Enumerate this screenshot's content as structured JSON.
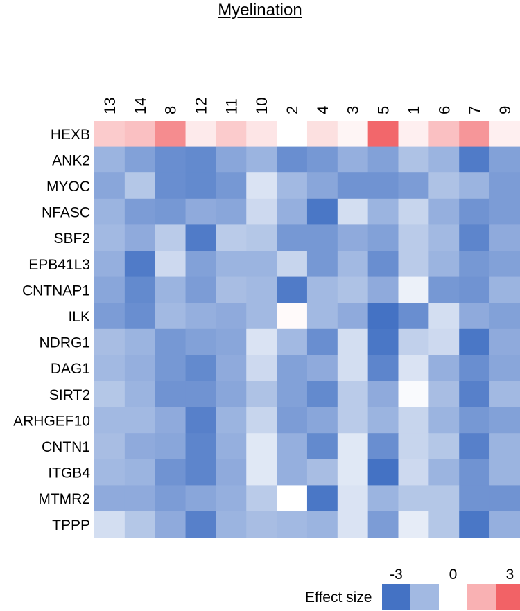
{
  "chart_data": {
    "type": "heatmap",
    "title": "Myelination",
    "columns": [
      "13",
      "14",
      "8",
      "12",
      "11",
      "10",
      "2",
      "4",
      "3",
      "5",
      "1",
      "6",
      "7",
      "9"
    ],
    "rows": [
      "HEXB",
      "ANK2",
      "MYOC",
      "NFASC",
      "SBF2",
      "EPB41L3",
      "CNTNAP1",
      "ILK",
      "NDRG1",
      "DAG1",
      "SIRT2",
      "ARHGEF10",
      "CNTN1",
      "ITGB4",
      "MTMR2",
      "TPPP"
    ],
    "values": [
      [
        1.0,
        1.2,
        2.2,
        0.4,
        1.0,
        0.5,
        0.0,
        0.6,
        0.2,
        2.9,
        0.3,
        1.2,
        2.0,
        0.3
      ],
      [
        -1.6,
        -2.0,
        -2.4,
        -2.5,
        -1.9,
        -1.6,
        -2.4,
        -2.2,
        -1.7,
        -2.0,
        -1.3,
        -1.6,
        -2.8,
        -2.0
      ],
      [
        -1.9,
        -1.2,
        -2.4,
        -2.5,
        -2.2,
        -0.6,
        -1.5,
        -1.9,
        -2.3,
        -2.3,
        -2.1,
        -1.3,
        -1.6,
        -2.1
      ],
      [
        -1.6,
        -2.1,
        -2.2,
        -1.8,
        -1.9,
        -0.8,
        -1.7,
        -2.9,
        -0.7,
        -1.6,
        -0.9,
        -1.7,
        -2.3,
        -2.1
      ],
      [
        -1.5,
        -1.8,
        -1.1,
        -2.8,
        -1.1,
        -1.2,
        -2.2,
        -2.2,
        -1.8,
        -2.0,
        -1.1,
        -1.5,
        -2.6,
        -1.8
      ],
      [
        -1.7,
        -2.8,
        -0.8,
        -2.0,
        -1.6,
        -1.6,
        -0.9,
        -2.2,
        -1.5,
        -2.4,
        -1.1,
        -1.6,
        -2.2,
        -2.0
      ],
      [
        -1.9,
        -2.5,
        -1.6,
        -2.1,
        -1.4,
        -1.5,
        -2.8,
        -1.5,
        -1.3,
        -1.8,
        -0.3,
        -2.2,
        -2.3,
        -1.6
      ],
      [
        -2.1,
        -2.4,
        -1.5,
        -1.7,
        -1.8,
        -1.5,
        0.1,
        -1.5,
        -1.8,
        -3.0,
        -2.4,
        -0.7,
        -1.8,
        -2.0
      ],
      [
        -1.4,
        -1.6,
        -2.2,
        -2.0,
        -1.9,
        -0.6,
        -1.5,
        -2.4,
        -0.7,
        -2.9,
        -1.0,
        -0.8,
        -2.9,
        -1.8
      ],
      [
        -1.5,
        -1.7,
        -2.2,
        -2.5,
        -1.8,
        -0.8,
        -2.0,
        -1.8,
        -0.7,
        -2.6,
        -0.6,
        -1.7,
        -2.4,
        -1.9
      ],
      [
        -1.2,
        -1.6,
        -2.3,
        -2.3,
        -1.9,
        -1.3,
        -2.0,
        -2.5,
        -1.1,
        -1.8,
        -0.1,
        -1.4,
        -2.7,
        -1.5
      ],
      [
        -1.5,
        -1.5,
        -1.8,
        -2.7,
        -1.6,
        -0.9,
        -2.1,
        -1.9,
        -1.1,
        -1.6,
        -0.9,
        -1.6,
        -2.2,
        -2.0
      ],
      [
        -1.4,
        -1.8,
        -1.9,
        -2.6,
        -1.7,
        -0.5,
        -1.7,
        -2.5,
        -0.5,
        -2.4,
        -0.9,
        -1.2,
        -2.7,
        -1.6
      ],
      [
        -1.5,
        -1.6,
        -2.3,
        -2.6,
        -1.8,
        -0.5,
        -1.7,
        -1.4,
        -0.5,
        -3.0,
        -0.8,
        -1.6,
        -2.3,
        -1.6
      ],
      [
        -1.8,
        -1.8,
        -2.1,
        -1.9,
        -1.7,
        -1.1,
        0.0,
        -2.9,
        -0.6,
        -1.6,
        -1.2,
        -1.2,
        -2.3,
        -2.3
      ],
      [
        -0.7,
        -1.2,
        -1.8,
        -2.7,
        -1.6,
        -1.4,
        -1.5,
        -1.6,
        -0.6,
        -2.1,
        -0.4,
        -1.2,
        -2.9,
        -1.7
      ]
    ],
    "colors": {
      "neg": "#4472c4",
      "mid": "#ffffff",
      "pos": "#f26266"
    },
    "legend": {
      "label": "Effect size",
      "ticks": [
        "-3",
        "0",
        "3"
      ],
      "swatches": [
        -3,
        -1.5,
        0,
        1.5,
        3
      ]
    },
    "vrange": [
      -3,
      3
    ]
  }
}
